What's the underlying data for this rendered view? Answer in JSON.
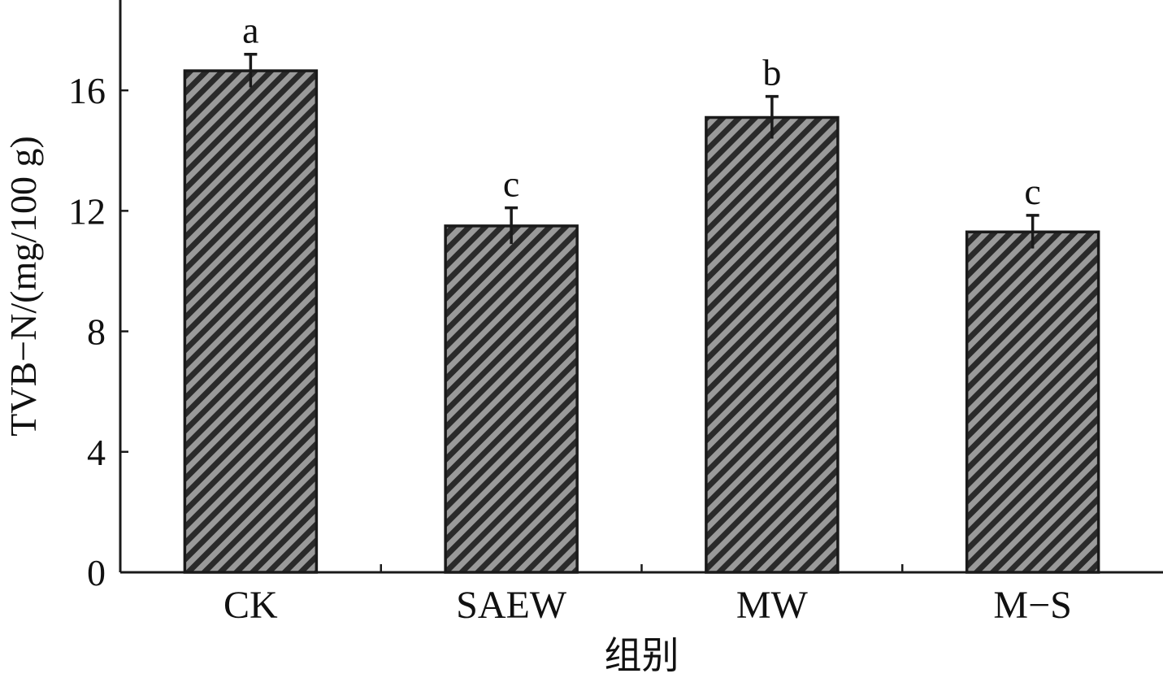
{
  "chart_data": {
    "type": "bar",
    "categories": [
      "CK",
      "SAEW",
      "MW",
      "M-S"
    ],
    "category_labels": [
      "CK",
      "SAEW",
      "MW",
      "M−S"
    ],
    "values": [
      16.65,
      11.5,
      15.1,
      11.3
    ],
    "errors": [
      0.55,
      0.6,
      0.7,
      0.55
    ],
    "significance": [
      "a",
      "c",
      "b",
      "c"
    ],
    "xlabel": "组别",
    "ylabel": "TVB−N/(mg/100 g)",
    "ylim": [
      0,
      19
    ],
    "yticks": [
      0,
      4,
      8,
      12,
      16
    ],
    "ytick_labels": [
      "0",
      "4",
      "8",
      "12",
      "16"
    ],
    "grid": false,
    "bar_pattern": "diagonal-hatch",
    "colors": {
      "bar_stripe_dark": "#2a2a2a",
      "bar_stripe_light": "#9a9a9a",
      "axis": "#1a1a1a"
    }
  }
}
